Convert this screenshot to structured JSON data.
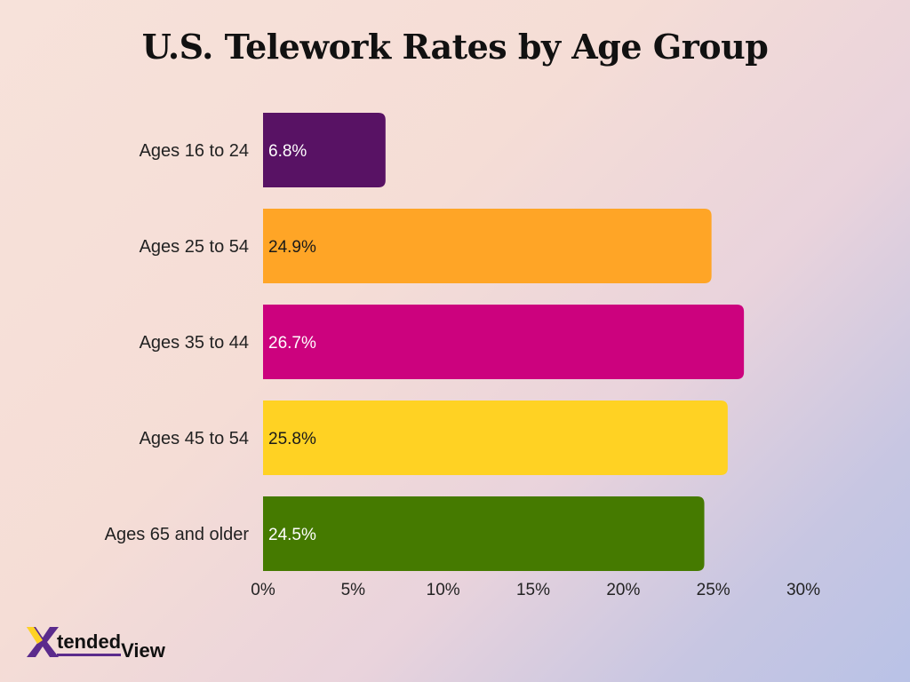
{
  "chart_data": {
    "type": "bar",
    "orientation": "horizontal",
    "title": "U.S. Telework Rates by Age Group",
    "categories": [
      "Ages 16 to 24",
      "Ages 25 to 54",
      "Ages 35 to 44",
      "Ages 45 to 54",
      "Ages 65 and older"
    ],
    "values": [
      6.8,
      24.9,
      26.7,
      25.8,
      24.5
    ],
    "value_labels": [
      "6.8%",
      "24.9%",
      "26.7%",
      "25.8%",
      "24.5%"
    ],
    "colors": [
      "#581264",
      "#ffa526",
      "#cc027e",
      "#ffd223",
      "#457a00"
    ],
    "value_label_colors": [
      "#ffffff",
      "#1a1a1a",
      "#ffffff",
      "#1a1a1a",
      "#ffffff"
    ],
    "xlim": [
      0,
      30
    ],
    "xticks": [
      0,
      5,
      10,
      15,
      20,
      25,
      30
    ],
    "xtick_labels": [
      "0%",
      "5%",
      "10%",
      "15%",
      "20%",
      "25%",
      "30%"
    ],
    "xlabel": "",
    "ylabel": "",
    "grid": false,
    "legend": "none"
  },
  "brand": {
    "logo_letter": "X",
    "logo_word_1": "tended",
    "logo_word_2": "View",
    "logo_colors": [
      "#5b2b8c",
      "#ffd223"
    ]
  }
}
